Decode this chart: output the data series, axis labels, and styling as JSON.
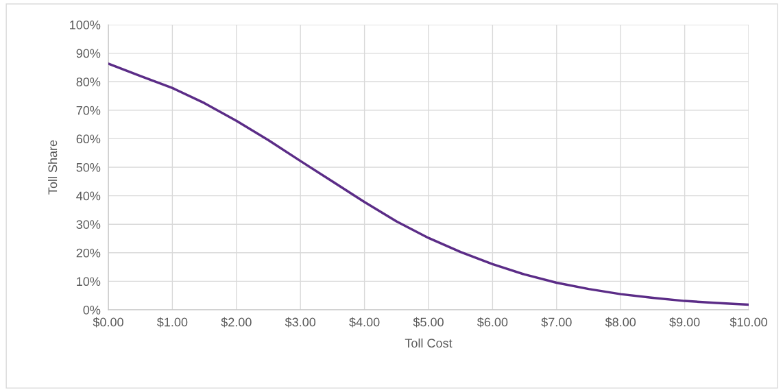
{
  "chart_data": {
    "type": "line",
    "xlabel": "Toll Cost",
    "ylabel": "Toll Share",
    "x": [
      0,
      0.5,
      1,
      1.5,
      2,
      2.5,
      3,
      3.5,
      4,
      4.5,
      5,
      5.5,
      6,
      6.5,
      7,
      7.5,
      8,
      8.5,
      9,
      9.5,
      10
    ],
    "series": [
      {
        "color": "#5b2c87",
        "values": [
          86.3,
          82,
          77.8,
          72.5,
          66.3,
          59.5,
          52.2,
          45,
          37.8,
          31,
          25.2,
          20.3,
          16,
          12.4,
          9.5,
          7.3,
          5.5,
          4.2,
          3.1,
          2.4,
          1.8
        ]
      }
    ],
    "xlim": [
      0,
      10
    ],
    "xticks": [
      {
        "value": 0,
        "label": "$0.00"
      },
      {
        "value": 1,
        "label": "$1.00"
      },
      {
        "value": 2,
        "label": "$2.00"
      },
      {
        "value": 3,
        "label": "$3.00"
      },
      {
        "value": 4,
        "label": "$4.00"
      },
      {
        "value": 5,
        "label": "$5.00"
      },
      {
        "value": 6,
        "label": "$6.00"
      },
      {
        "value": 7,
        "label": "$7.00"
      },
      {
        "value": 8,
        "label": "$8.00"
      },
      {
        "value": 9,
        "label": "$9.00"
      },
      {
        "value": 10,
        "label": "$10.00"
      }
    ],
    "ylim": [
      0,
      100
    ],
    "yticks": [
      {
        "value": 0,
        "label": "0%"
      },
      {
        "value": 10,
        "label": "10%"
      },
      {
        "value": 20,
        "label": "20%"
      },
      {
        "value": 30,
        "label": "30%"
      },
      {
        "value": 40,
        "label": "40%"
      },
      {
        "value": 50,
        "label": "50%"
      },
      {
        "value": 60,
        "label": "60%"
      },
      {
        "value": 70,
        "label": "70%"
      },
      {
        "value": 80,
        "label": "80%"
      },
      {
        "value": 90,
        "label": "90%"
      },
      {
        "value": 100,
        "label": "100%"
      }
    ],
    "grid": true,
    "marker": "none",
    "line_style": "solid",
    "legend": false
  }
}
